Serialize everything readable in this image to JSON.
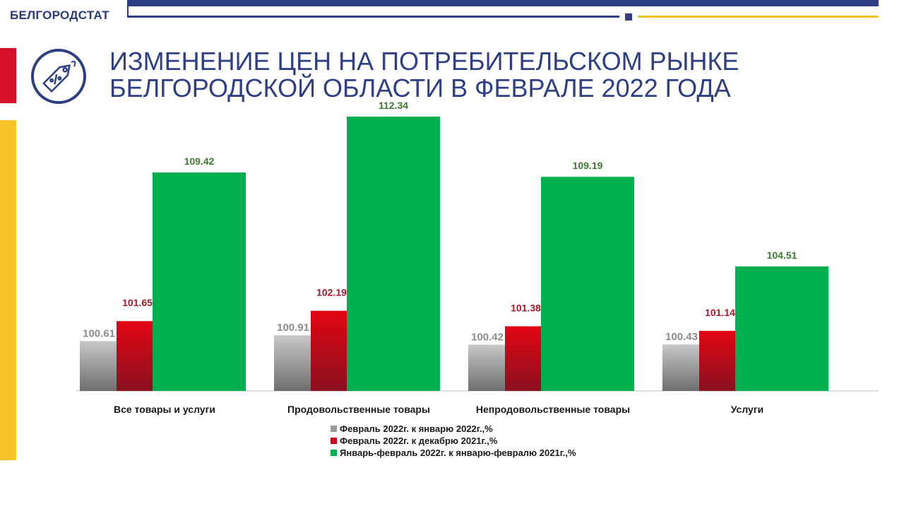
{
  "header": {
    "brand": "БЕЛГОРОДСТАТ",
    "title_line1": "ИЗМЕНЕНИЕ ЦЕН НА ПОТРЕБИТЕЛЬСКОМ РЫНКЕ",
    "title_line2": "БЕЛГОРОДСКОЙ ОБЛАСТИ В ФЕВРАЛЕ 2022 ГОДА",
    "logo_icon": "price-tag-icon"
  },
  "colors": {
    "brand_blue": "#2f3f86",
    "accent_red": "#d6112a",
    "accent_yellow": "#f9c42a",
    "series_gray": "#9a9a9a",
    "series_red": "#c40f1f",
    "series_green": "#00b050"
  },
  "chart_data": {
    "type": "bar",
    "categories": [
      "Все товары и услуги",
      "Продовольственные товары",
      "Непродовольственные товары",
      "Услуги"
    ],
    "series": [
      {
        "name": "Февраль 2022г.  к январю 2022г.,%",
        "values": [
          100.61,
          100.91,
          100.42,
          100.43
        ],
        "color": "#9a9a9a"
      },
      {
        "name": "Февраль 2022г.  к декабрю 2021г.,%",
        "values": [
          101.65,
          102.19,
          101.38,
          101.14
        ],
        "color": "#c40f1f"
      },
      {
        "name": "Январь-февраль 2022г. к январю-февралю 2021г.,%",
        "values": [
          109.42,
          112.34,
          109.19,
          104.51
        ],
        "color": "#00b050"
      }
    ],
    "ylim": [
      98,
      114
    ],
    "grid": false,
    "legend": "bottom"
  }
}
